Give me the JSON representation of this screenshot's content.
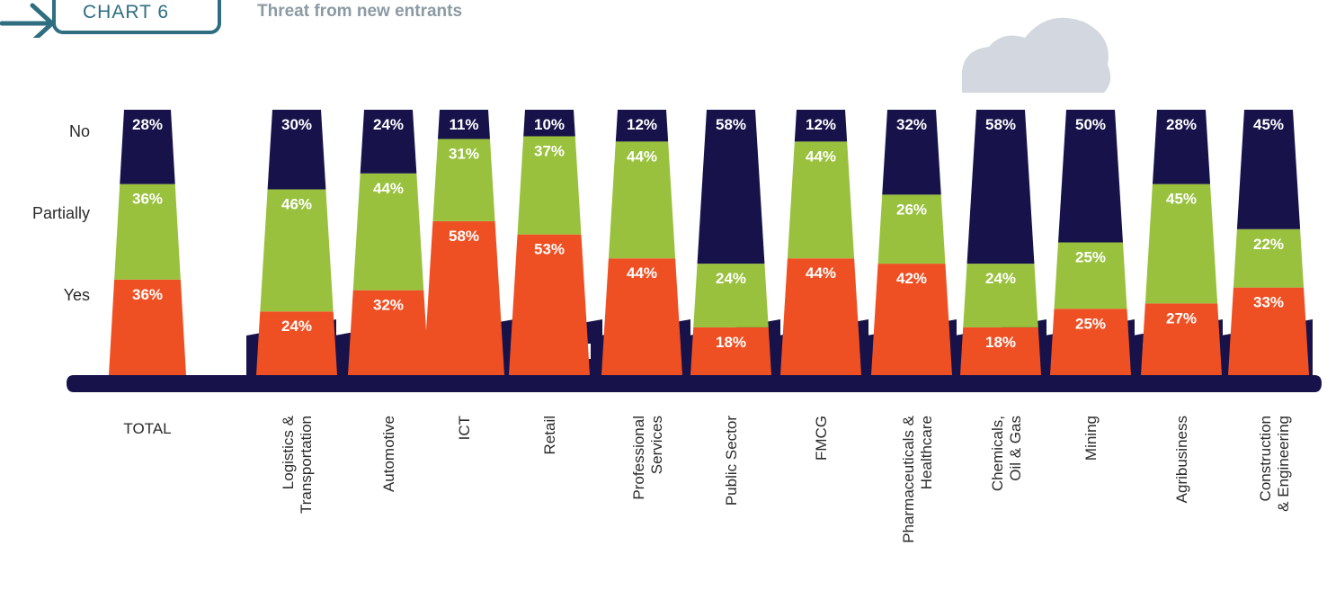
{
  "header": {
    "chart_tag": "CHART 6",
    "title": "Threat from new entrants"
  },
  "colors": {
    "no": "#17124a",
    "partially": "#99c13d",
    "yes": "#ef5023",
    "factory": "#17124a",
    "cloud": "#d3d8e0",
    "accent": "#2e6e80"
  },
  "chart_data": {
    "type": "bar",
    "stacked": true,
    "title": "Threat from new entrants",
    "y_categories": [
      "No",
      "Partially",
      "Yes"
    ],
    "categories": [
      "TOTAL",
      "Logistics & Transportation",
      "Automotive",
      "ICT",
      "Retail",
      "Professional Services",
      "Public Sector",
      "FMCG",
      "Pharmaceuticals & Healthcare",
      "Chemicals, Oil & Gas",
      "Mining",
      "Agribusiness",
      "Construction & Engineering"
    ],
    "category_label_lines": [
      [
        "TOTAL"
      ],
      [
        "Logistics &",
        "Transportation"
      ],
      [
        "Automotive"
      ],
      [
        "ICT"
      ],
      [
        "Retail"
      ],
      [
        "Professional",
        "Services"
      ],
      [
        "Public Sector"
      ],
      [
        "FMCG"
      ],
      [
        "Pharmaceuticals &",
        "Healthcare"
      ],
      [
        "Chemicals,",
        "Oil & Gas"
      ],
      [
        "Mining"
      ],
      [
        "Agribusiness"
      ],
      [
        "Construction",
        "& Engineering"
      ]
    ],
    "series": [
      {
        "name": "Yes",
        "values": [
          36,
          24,
          32,
          58,
          53,
          44,
          18,
          44,
          42,
          18,
          25,
          27,
          33
        ]
      },
      {
        "name": "Partially",
        "values": [
          36,
          46,
          44,
          31,
          37,
          44,
          24,
          44,
          26,
          24,
          25,
          45,
          22
        ]
      },
      {
        "name": "No",
        "values": [
          28,
          30,
          24,
          11,
          10,
          12,
          58,
          12,
          32,
          58,
          50,
          28,
          45
        ]
      }
    ],
    "unit": "%",
    "ylim": [
      0,
      100
    ]
  }
}
